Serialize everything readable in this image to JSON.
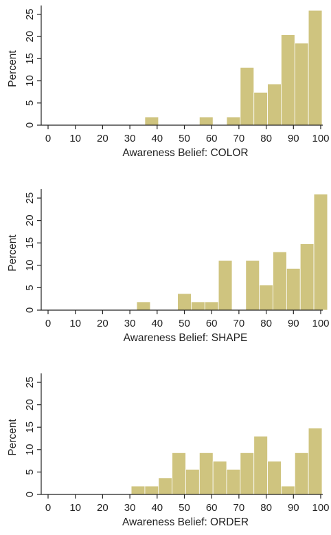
{
  "colors": {
    "bar": "#cfc47f",
    "axis": "#222222",
    "background": "#ffffff"
  },
  "chart_data": [
    {
      "type": "bar",
      "panel": "color",
      "xlabel": "Awareness Belief: COLOR",
      "ylabel": "Percent",
      "xlim": [
        -3,
        103
      ],
      "ylim": [
        0,
        27
      ],
      "xticks": [
        0,
        10,
        20,
        30,
        40,
        50,
        60,
        70,
        80,
        90,
        100
      ],
      "yticks": [
        0,
        5,
        10,
        15,
        20,
        25
      ],
      "grid": false,
      "bars": [
        {
          "x0": 35.5,
          "x1": 40.5,
          "value": 1.85
        },
        {
          "x0": 55.5,
          "x1": 60.5,
          "value": 1.85
        },
        {
          "x0": 65.5,
          "x1": 70.5,
          "value": 1.85
        },
        {
          "x0": 70.5,
          "x1": 75.5,
          "value": 13
        },
        {
          "x0": 75.5,
          "x1": 80.5,
          "value": 7.4
        },
        {
          "x0": 80.5,
          "x1": 85.5,
          "value": 9.3
        },
        {
          "x0": 85.5,
          "x1": 90.5,
          "value": 20.4
        },
        {
          "x0": 90.5,
          "x1": 95.5,
          "value": 18.5
        },
        {
          "x0": 95.5,
          "x1": 100.5,
          "value": 25.9
        }
      ]
    },
    {
      "type": "bar",
      "panel": "shape",
      "xlabel": "Awareness Belief: SHAPE",
      "ylabel": "Percent",
      "xlim": [
        -3,
        103
      ],
      "ylim": [
        0,
        27
      ],
      "xticks": [
        0,
        10,
        20,
        30,
        40,
        50,
        60,
        70,
        80,
        90,
        100
      ],
      "yticks": [
        0,
        5,
        10,
        15,
        20,
        25
      ],
      "grid": false,
      "bars": [
        {
          "x0": 32.5,
          "x1": 37.5,
          "value": 1.85
        },
        {
          "x0": 47.5,
          "x1": 52.5,
          "value": 3.7
        },
        {
          "x0": 52.5,
          "x1": 57.5,
          "value": 1.85
        },
        {
          "x0": 57.5,
          "x1": 62.5,
          "value": 1.85
        },
        {
          "x0": 62.5,
          "x1": 67.5,
          "value": 11.1
        },
        {
          "x0": 72.5,
          "x1": 77.5,
          "value": 11.1
        },
        {
          "x0": 77.5,
          "x1": 82.5,
          "value": 5.6
        },
        {
          "x0": 82.5,
          "x1": 87.5,
          "value": 13
        },
        {
          "x0": 87.5,
          "x1": 92.5,
          "value": 9.3
        },
        {
          "x0": 92.5,
          "x1": 97.5,
          "value": 14.8
        },
        {
          "x0": 97.5,
          "x1": 102.5,
          "value": 25.9
        }
      ]
    },
    {
      "type": "bar",
      "panel": "order",
      "xlabel": "Awareness Belief: ORDER",
      "ylabel": "Percent",
      "xlim": [
        -3,
        103
      ],
      "ylim": [
        0,
        27
      ],
      "xticks": [
        0,
        10,
        20,
        30,
        40,
        50,
        60,
        70,
        80,
        90,
        100
      ],
      "yticks": [
        0,
        5,
        10,
        15,
        20,
        25
      ],
      "grid": false,
      "bars": [
        {
          "x0": 30.5,
          "x1": 35.5,
          "value": 1.85
        },
        {
          "x0": 35.5,
          "x1": 40.5,
          "value": 1.85
        },
        {
          "x0": 40.5,
          "x1": 45.5,
          "value": 3.7
        },
        {
          "x0": 45.5,
          "x1": 50.5,
          "value": 9.3
        },
        {
          "x0": 50.5,
          "x1": 55.5,
          "value": 5.6
        },
        {
          "x0": 55.5,
          "x1": 60.5,
          "value": 9.3
        },
        {
          "x0": 60.5,
          "x1": 65.5,
          "value": 7.4
        },
        {
          "x0": 65.5,
          "x1": 70.5,
          "value": 5.6
        },
        {
          "x0": 70.5,
          "x1": 75.5,
          "value": 9.3
        },
        {
          "x0": 75.5,
          "x1": 80.5,
          "value": 13
        },
        {
          "x0": 80.5,
          "x1": 85.5,
          "value": 7.4
        },
        {
          "x0": 85.5,
          "x1": 90.5,
          "value": 1.85
        },
        {
          "x0": 90.5,
          "x1": 95.5,
          "value": 9.3
        },
        {
          "x0": 95.5,
          "x1": 100.5,
          "value": 14.8
        }
      ]
    }
  ]
}
